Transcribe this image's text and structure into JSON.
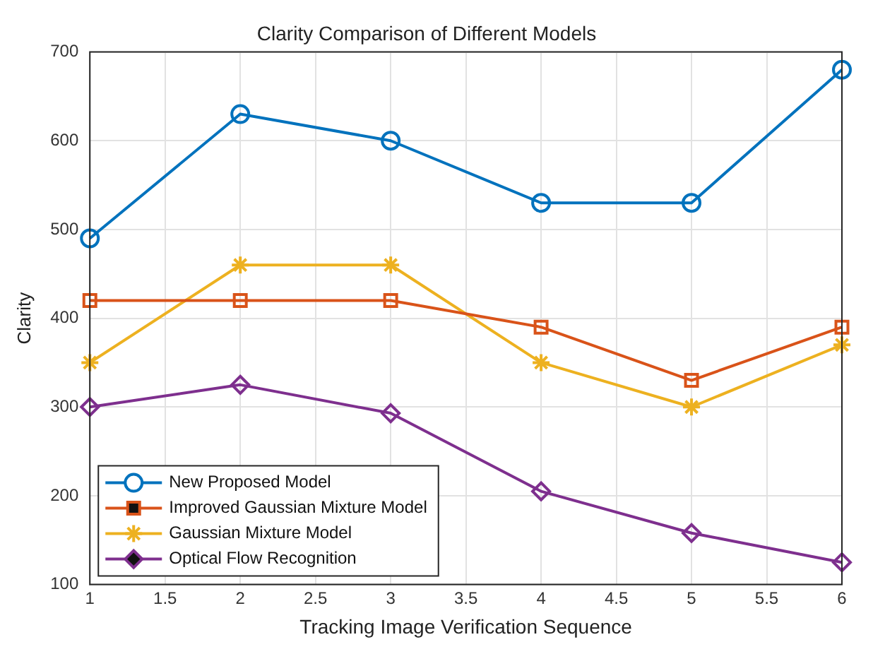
{
  "chart_data": {
    "type": "line",
    "title": "Clarity Comparison of Different Models",
    "xlabel": "Tracking Image Verification Sequence",
    "ylabel": "Clarity",
    "x": [
      1,
      2,
      3,
      4,
      5,
      6
    ],
    "xlim": [
      1,
      6
    ],
    "xticks": [
      1,
      1.5,
      2,
      2.5,
      3,
      3.5,
      4,
      4.5,
      5,
      5.5,
      6
    ],
    "ylim": [
      100,
      700
    ],
    "yticks": [
      100,
      200,
      300,
      400,
      500,
      600,
      700
    ],
    "grid": true,
    "legend": "bottom left",
    "line_style": "solid",
    "series": [
      {
        "name": "New Proposed Model",
        "color": "#0072bd",
        "marker": "circle",
        "values": [
          490,
          630,
          600,
          530,
          530,
          680
        ]
      },
      {
        "name": "Improved Gaussian Mixture Model",
        "color": "#d95319",
        "marker": "square",
        "values": [
          420,
          420,
          420,
          390,
          330,
          390
        ]
      },
      {
        "name": "Gaussian Mixture Model",
        "color": "#edb120",
        "marker": "cross",
        "values": [
          350,
          460,
          460,
          350,
          300,
          370
        ]
      },
      {
        "name": "Optical Flow Recognition",
        "color": "#7e2f8e",
        "marker": "diamond",
        "values": [
          300,
          325,
          293,
          205,
          158,
          125
        ]
      }
    ]
  }
}
